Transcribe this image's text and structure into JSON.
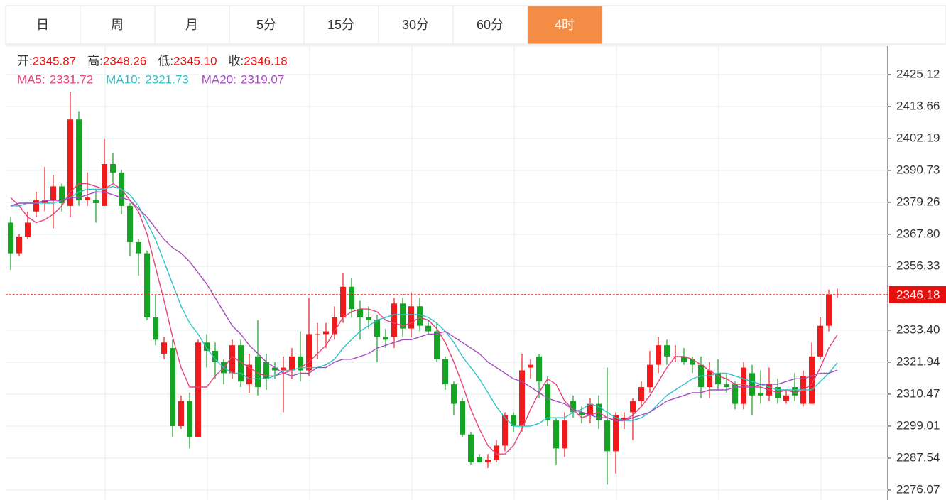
{
  "tabs": [
    "日",
    "周",
    "月",
    "5分",
    "15分",
    "30分",
    "60分",
    "4时"
  ],
  "active_tab": 7,
  "chart_data": {
    "type": "candlestick",
    "ohlc_header": {
      "labels": [
        "开:",
        "高:",
        "低:",
        "收:"
      ],
      "values": [
        "2345.87",
        "2348.26",
        "2345.10",
        "2346.18"
      ]
    },
    "up_color": "#f0191b",
    "down_color": "#15a324",
    "open": [
      2372,
      2361,
      2367,
      2376,
      2379,
      2380,
      2385,
      2378,
      2409,
      2380,
      2380,
      2378,
      2393,
      2390,
      2378,
      2365,
      2361,
      2338,
      2325,
      2327,
      2299,
      2308,
      2295,
      2329,
      2326,
      2322,
      2318,
      2328,
      2314,
      2324,
      2322,
      2320,
      2319,
      2319,
      2324,
      2319,
      2332,
      2332,
      2332,
      2338,
      2349,
      2341,
      2338,
      2337,
      2331,
      2331,
      2343,
      2334,
      2342,
      2335,
      2333,
      2323,
      2314,
      2308,
      2296,
      2288,
      2286,
      2287,
      2292,
      2303,
      2299,
      2320,
      2324,
      2314,
      2301,
      2291,
      2308,
      2304,
      2303,
      2307,
      2301,
      2290,
      2301,
      2304,
      2308,
      2313,
      2321,
      2328,
      2324,
      2324,
      2323,
      2321,
      2313,
      2318,
      2314,
      2314,
      2307,
      2318,
      2311,
      2310,
      2313,
      2308,
      2313,
      2307,
      2307,
      2324,
      2335,
      2345.87
    ],
    "high": [
      2374,
      2368,
      2376,
      2383,
      2392,
      2389,
      2386,
      2419,
      2412,
      2390,
      2384,
      2402,
      2397,
      2391,
      2379,
      2366,
      2362,
      2346,
      2331,
      2330,
      2310,
      2311,
      2330,
      2332,
      2329,
      2323,
      2330,
      2330,
      2325,
      2337,
      2325,
      2322,
      2324,
      2327,
      2333,
      2345,
      2336,
      2336,
      2342,
      2354,
      2352,
      2344,
      2342,
      2339,
      2334,
      2345,
      2345,
      2347,
      2345,
      2337,
      2336,
      2324,
      2315,
      2309,
      2297,
      2289,
      2289,
      2294,
      2304,
      2304,
      2325,
      2323,
      2325,
      2317,
      2302,
      2304,
      2310,
      2306,
      2309,
      2310,
      2320,
      2304,
      2304,
      2309,
      2315,
      2326,
      2331,
      2330,
      2328,
      2327,
      2324,
      2324,
      2322,
      2323,
      2318,
      2315,
      2322,
      2321,
      2319,
      2320,
      2316,
      2312,
      2318,
      2319,
      2329,
      2338,
      2348,
      2348.26
    ],
    "low": [
      2355,
      2360,
      2366,
      2374,
      2376,
      2370,
      2376,
      2374,
      2378,
      2378,
      2372,
      2378,
      2386,
      2375,
      2360,
      2353,
      2337,
      2328,
      2323,
      2295,
      2298,
      2291,
      2295,
      2320,
      2316,
      2314,
      2316,
      2313,
      2311,
      2310,
      2312,
      2316,
      2304,
      2316,
      2315,
      2317,
      2323,
      2327,
      2330,
      2336,
      2338,
      2330,
      2334,
      2322,
      2327,
      2327,
      2331,
      2331,
      2333,
      2332,
      2322,
      2312,
      2303,
      2295,
      2285,
      2286,
      2284,
      2286,
      2290,
      2297,
      2297,
      2316,
      2309,
      2299,
      2285,
      2288,
      2302,
      2300,
      2300,
      2298,
      2278,
      2282,
      2298,
      2294,
      2306,
      2311,
      2318,
      2321,
      2322,
      2321,
      2318,
      2309,
      2309,
      2312,
      2311,
      2305,
      2305,
      2303,
      2307,
      2308,
      2307,
      2307,
      2308,
      2306,
      2307,
      2323,
      2333,
      2345.1
    ],
    "close": [
      2361,
      2367,
      2372,
      2380,
      2380,
      2385,
      2379,
      2409,
      2380,
      2381,
      2379,
      2393,
      2390,
      2378,
      2365,
      2361,
      2338,
      2330,
      2329,
      2299,
      2308,
      2295,
      2329,
      2326,
      2322,
      2318,
      2328,
      2315,
      2321,
      2313,
      2316,
      2319,
      2320,
      2324,
      2319,
      2332,
      2332,
      2333,
      2338,
      2349,
      2341,
      2338,
      2337,
      2331,
      2330,
      2343,
      2334,
      2342,
      2335,
      2333,
      2323,
      2314,
      2307,
      2296,
      2286,
      2286,
      2287,
      2292,
      2303,
      2299,
      2319,
      2321,
      2315,
      2301,
      2291,
      2301,
      2304,
      2303,
      2307,
      2301,
      2290,
      2303,
      2302,
      2308,
      2313,
      2321,
      2328,
      2324,
      2324,
      2322,
      2321,
      2313,
      2319,
      2314,
      2313,
      2307,
      2320,
      2310,
      2310,
      2314,
      2309,
      2310,
      2310,
      2317,
      2324,
      2335,
      2346,
      2346.18
    ],
    "ma_series": [
      {
        "name": "MA5:",
        "color": "#e8437a",
        "values": [
          2381,
          2378,
          2374,
          2372,
          2373,
          2375,
          2378,
          2383,
          2386,
          2386,
          2385,
          2384,
          2386,
          2384,
          2380,
          2376,
          2368,
          2356,
          2344,
          2331,
          2320,
          2313,
          2313,
          2313,
          2317,
          2320,
          2324,
          2322,
          2320,
          2318,
          2317,
          2317,
          2318,
          2319,
          2320,
          2322,
          2325,
          2328,
          2333,
          2338,
          2340,
          2341,
          2341,
          2340,
          2337,
          2336,
          2335,
          2336,
          2338,
          2337,
          2334,
          2329,
          2322,
          2314,
          2305,
          2298,
          2292,
          2289,
          2289,
          2292,
          2298,
          2305,
          2311,
          2316,
          2314,
          2308,
          2305,
          2302,
          2303,
          2304,
          2302,
          2301,
          2301,
          2303,
          2306,
          2310,
          2315,
          2320,
          2324,
          2324,
          2323,
          2321,
          2319,
          2317,
          2316,
          2314,
          2314,
          2313,
          2313,
          2312,
          2311,
          2312,
          2311,
          2312,
          2314,
          2320,
          2327,
          2331.72
        ]
      },
      {
        "name": "MA10:",
        "color": "#2fc2cc",
        "values": [
          2378,
          2378,
          2379,
          2379,
          2379,
          2379,
          2380,
          2381,
          2383,
          2384,
          2384,
          2384,
          2385,
          2384,
          2382,
          2378,
          2372,
          2366,
          2358,
          2350,
          2342,
          2336,
          2332,
          2327,
          2323,
          2320,
          2318,
          2318,
          2316,
          2316,
          2316,
          2317,
          2319,
          2319,
          2320,
          2320,
          2320,
          2321,
          2323,
          2327,
          2330,
          2333,
          2335,
          2337,
          2338,
          2339,
          2339,
          2339,
          2339,
          2338,
          2336,
          2333,
          2329,
          2324,
          2320,
          2316,
          2311,
          2306,
          2302,
          2299,
          2299,
          2299,
          2300,
          2302,
          2302,
          2302,
          2304,
          2305,
          2307,
          2306,
          2304,
          2302,
          2301,
          2301,
          2302,
          2304,
          2307,
          2310,
          2312,
          2314,
          2316,
          2317,
          2317,
          2318,
          2318,
          2317,
          2316,
          2315,
          2314,
          2313,
          2312,
          2312,
          2312,
          2312,
          2312,
          2315,
          2318,
          2321.73
        ]
      },
      {
        "name": "MA20:",
        "color": "#a64bc0",
        "values": [
          2378,
          2379,
          2379,
          2379,
          2380,
          2380,
          2380,
          2381,
          2381,
          2382,
          2383,
          2383,
          2382,
          2381,
          2380,
          2377,
          2374,
          2370,
          2366,
          2363,
          2361,
          2358,
          2354,
          2350,
          2345,
          2340,
          2335,
          2332,
          2328,
          2325,
          2322,
          2320,
          2318,
          2317,
          2318,
          2318,
          2320,
          2320,
          2322,
          2323,
          2323,
          2324,
          2325,
          2327,
          2328,
          2329,
          2330,
          2330,
          2331,
          2332,
          2332,
          2333,
          2331,
          2329,
          2327,
          2325,
          2322,
          2320,
          2318,
          2316,
          2315,
          2313,
          2311,
          2309,
          2308,
          2307,
          2305,
          2304,
          2303,
          2302,
          2302,
          2301,
          2301,
          2302,
          2303,
          2304,
          2306,
          2308,
          2309,
          2310,
          2311,
          2311,
          2312,
          2312,
          2312,
          2313,
          2313,
          2313,
          2314,
          2314,
          2314,
          2315,
          2316,
          2316,
          2317,
          2318,
          2318,
          2319.07
        ]
      }
    ],
    "ylim": [
      2272.5,
      2435.3
    ],
    "yticks": [
      2425.12,
      2413.66,
      2402.19,
      2390.73,
      2379.26,
      {
        "value": 2367.8,
        "label": "2367.80"
      },
      2356.33,
      {
        "value": 2333.4,
        "label": "2333.40"
      },
      2321.94,
      2310.47,
      2299.01,
      2287.54,
      2276.07
    ],
    "grid": true
  }
}
